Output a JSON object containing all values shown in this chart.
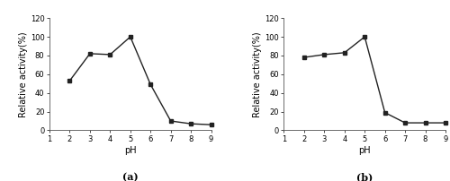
{
  "chart_a": {
    "x": [
      2,
      3,
      4,
      5,
      6,
      7,
      8,
      9
    ],
    "y": [
      53,
      82,
      81,
      100,
      49,
      10,
      7,
      6
    ],
    "xlabel": "pH",
    "ylabel": "Relative activity(%)",
    "xlim": [
      1,
      9
    ],
    "ylim": [
      0,
      120
    ],
    "yticks": [
      0,
      20,
      40,
      60,
      80,
      100,
      120
    ],
    "xticks": [
      1,
      2,
      3,
      4,
      5,
      6,
      7,
      8,
      9
    ],
    "label": "(a)"
  },
  "chart_b": {
    "x": [
      2,
      3,
      4,
      5,
      6,
      7,
      8,
      9
    ],
    "y": [
      78,
      81,
      83,
      100,
      19,
      8,
      8,
      8
    ],
    "xlabel": "pH",
    "ylabel": "Relative activity(%)",
    "xlim": [
      1,
      9
    ],
    "ylim": [
      0,
      120
    ],
    "yticks": [
      0,
      20,
      40,
      60,
      80,
      100,
      120
    ],
    "xticks": [
      1,
      2,
      3,
      4,
      5,
      6,
      7,
      8,
      9
    ],
    "label": "(b)"
  },
  "line_color": "#222222",
  "marker": "s",
  "markersize": 3,
  "linewidth": 1.0,
  "bg_color": "#ffffff",
  "font_size_label": 7,
  "font_size_tick": 6,
  "font_size_sublabel": 8
}
